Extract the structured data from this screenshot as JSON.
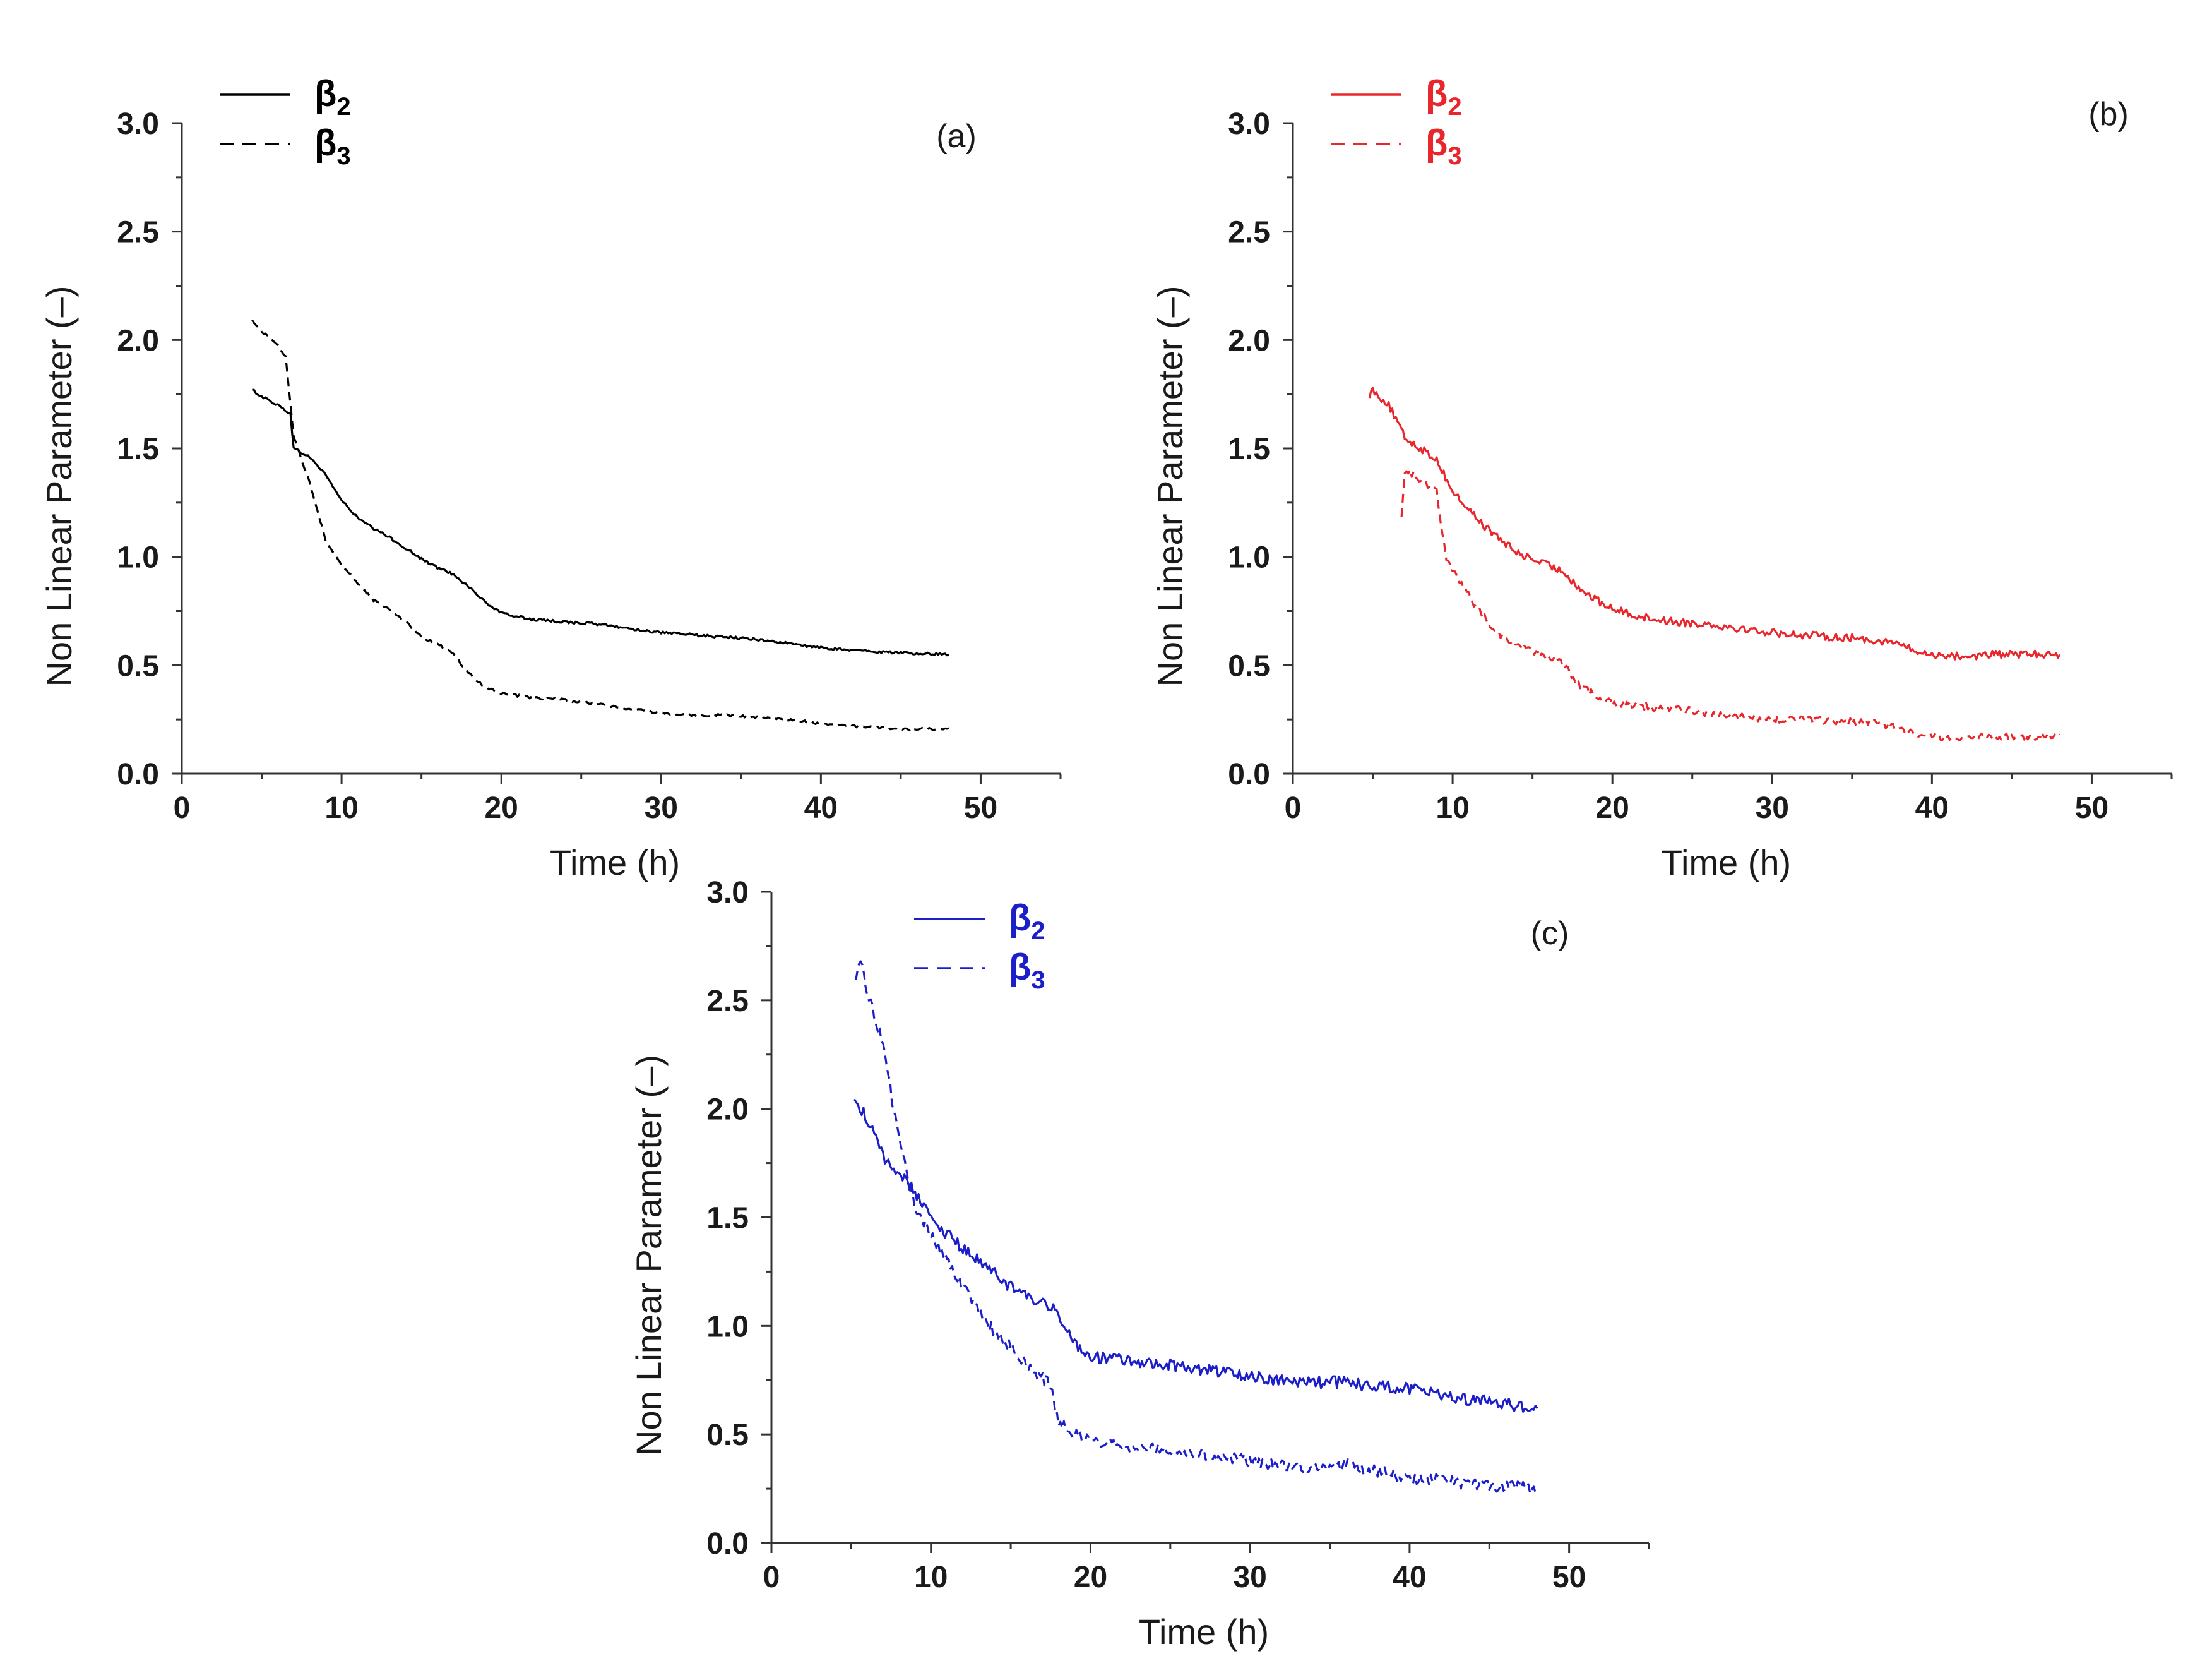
{
  "chart_data": [
    {
      "type": "line",
      "panel_label": "(a)",
      "color": "#000000",
      "xlabel": "Time (h)",
      "ylabel": "Non Linear Parameter (–)",
      "xlim": [
        0,
        55
      ],
      "ylim": [
        0.0,
        3.0
      ],
      "x_ticks": [
        0,
        10,
        20,
        30,
        40,
        50
      ],
      "x_tick_labels": [
        "0",
        "10",
        "20",
        "30",
        "40",
        "50"
      ],
      "y_ticks": [
        0.0,
        0.5,
        1.0,
        1.5,
        2.0,
        2.5,
        3.0
      ],
      "y_tick_labels": [
        "0.0",
        "0.5",
        "1.0",
        "1.5",
        "2.0",
        "2.5",
        "3.0"
      ],
      "legend_position": "top-left",
      "noise": 0.006,
      "series": [
        {
          "name": "β2",
          "symbol": "β",
          "subscript": "2",
          "style": "solid",
          "x": [
            4.4,
            5,
            6,
            6.8,
            7,
            8,
            9,
            10,
            11,
            12,
            13,
            14,
            15,
            16,
            17,
            18,
            19,
            20,
            22,
            24,
            26,
            28,
            30,
            32,
            34,
            36,
            38,
            40,
            42,
            44,
            46,
            48
          ],
          "y": [
            1.77,
            1.74,
            1.7,
            1.66,
            1.5,
            1.46,
            1.38,
            1.26,
            1.18,
            1.13,
            1.09,
            1.04,
            0.99,
            0.95,
            0.92,
            0.86,
            0.79,
            0.74,
            0.71,
            0.7,
            0.69,
            0.67,
            0.65,
            0.64,
            0.63,
            0.62,
            0.6,
            0.58,
            0.57,
            0.56,
            0.555,
            0.55
          ]
        },
        {
          "name": "β3",
          "symbol": "β",
          "subscript": "3",
          "style": "dashed",
          "x": [
            4.4,
            5,
            6,
            6.5,
            7,
            8,
            9,
            10,
            11,
            12,
            13,
            14,
            15,
            16,
            17,
            18,
            19,
            20,
            22,
            24,
            26,
            28,
            30,
            32,
            34,
            36,
            38,
            40,
            42,
            44,
            46,
            48
          ],
          "y": [
            2.09,
            2.04,
            1.98,
            1.92,
            1.56,
            1.34,
            1.08,
            0.96,
            0.88,
            0.8,
            0.76,
            0.7,
            0.63,
            0.6,
            0.55,
            0.46,
            0.4,
            0.37,
            0.35,
            0.34,
            0.32,
            0.3,
            0.28,
            0.27,
            0.27,
            0.26,
            0.25,
            0.23,
            0.22,
            0.21,
            0.205,
            0.21
          ]
        }
      ]
    },
    {
      "type": "line",
      "panel_label": "(b)",
      "color": "#e8262c",
      "xlabel": "Time (h)",
      "ylabel": "Non Linear Parameter (–)",
      "xlim": [
        0,
        55
      ],
      "ylim": [
        0.0,
        3.0
      ],
      "x_ticks": [
        0,
        10,
        20,
        30,
        40,
        50
      ],
      "x_tick_labels": [
        "0",
        "10",
        "20",
        "30",
        "40",
        "50"
      ],
      "y_ticks": [
        0.0,
        0.5,
        1.0,
        1.5,
        2.0,
        2.5,
        3.0
      ],
      "y_tick_labels": [
        "0.0",
        "0.5",
        "1.0",
        "1.5",
        "2.0",
        "2.5",
        "3.0"
      ],
      "legend_position": "top-left",
      "noise": 0.018,
      "series": [
        {
          "name": "β2",
          "symbol": "β",
          "subscript": "2",
          "style": "solid",
          "x": [
            4.8,
            5,
            6,
            7,
            8,
            9,
            10,
            11,
            12,
            13,
            14,
            15,
            16,
            17,
            18,
            19,
            20,
            22,
            24,
            26,
            28,
            30,
            32,
            34,
            36,
            38,
            39,
            40,
            42,
            44,
            46,
            48
          ],
          "y": [
            1.75,
            1.77,
            1.7,
            1.55,
            1.5,
            1.45,
            1.3,
            1.22,
            1.14,
            1.08,
            1.02,
            0.99,
            0.96,
            0.93,
            0.85,
            0.8,
            0.76,
            0.72,
            0.7,
            0.69,
            0.67,
            0.65,
            0.64,
            0.63,
            0.62,
            0.6,
            0.56,
            0.55,
            0.54,
            0.55,
            0.55,
            0.55
          ]
        },
        {
          "name": "β3",
          "symbol": "β",
          "subscript": "3",
          "style": "dashed",
          "x": [
            6.8,
            7,
            8,
            9,
            9.6,
            10,
            11,
            12,
            13,
            14,
            15,
            16,
            17,
            18,
            19,
            20,
            22,
            24,
            26,
            28,
            30,
            32,
            34,
            36,
            38,
            39,
            40,
            42,
            44,
            46,
            48
          ],
          "y": [
            1.2,
            1.4,
            1.36,
            1.3,
            1.0,
            0.94,
            0.82,
            0.72,
            0.64,
            0.6,
            0.56,
            0.54,
            0.5,
            0.4,
            0.36,
            0.33,
            0.31,
            0.3,
            0.28,
            0.26,
            0.25,
            0.25,
            0.24,
            0.24,
            0.21,
            0.18,
            0.17,
            0.17,
            0.17,
            0.17,
            0.18
          ]
        }
      ]
    },
    {
      "type": "line",
      "panel_label": "(c)",
      "color": "#1c1fc9",
      "xlabel": "Time (h)",
      "ylabel": "Non Linear Parameter (–)",
      "xlim": [
        0,
        55
      ],
      "ylim": [
        0.0,
        3.0
      ],
      "x_ticks": [
        0,
        10,
        20,
        30,
        40,
        50
      ],
      "x_tick_labels": [
        "0",
        "10",
        "20",
        "30",
        "40",
        "50"
      ],
      "y_ticks": [
        0.0,
        0.5,
        1.0,
        1.5,
        2.0,
        2.5,
        3.0
      ],
      "y_tick_labels": [
        "0.0",
        "0.5",
        "1.0",
        "1.5",
        "2.0",
        "2.5",
        "3.0"
      ],
      "legend_position": "top-left",
      "noise": 0.028,
      "series": [
        {
          "name": "β2",
          "symbol": "β",
          "subscript": "2",
          "style": "solid",
          "x": [
            5.2,
            6,
            7,
            8,
            9,
            10,
            11,
            12,
            13,
            14,
            15,
            16,
            17,
            18,
            19,
            20,
            22,
            24,
            26,
            28,
            30,
            32,
            34,
            36,
            38,
            40,
            42,
            44,
            46,
            48
          ],
          "y": [
            2.05,
            1.95,
            1.78,
            1.7,
            1.62,
            1.5,
            1.42,
            1.36,
            1.3,
            1.24,
            1.18,
            1.13,
            1.1,
            1.06,
            0.92,
            0.86,
            0.84,
            0.83,
            0.81,
            0.79,
            0.77,
            0.75,
            0.74,
            0.74,
            0.72,
            0.71,
            0.68,
            0.66,
            0.64,
            0.62
          ]
        },
        {
          "name": "β3",
          "symbol": "β",
          "subscript": "3",
          "style": "dashed",
          "x": [
            5.3,
            5.6,
            6,
            7,
            8,
            9,
            10,
            11,
            12,
            13,
            14,
            15,
            16,
            17,
            17.5,
            18,
            19,
            20,
            22,
            24,
            26,
            28,
            30,
            32,
            34,
            36,
            38,
            40,
            42,
            44,
            46,
            48
          ],
          "y": [
            2.6,
            2.68,
            2.55,
            2.3,
            1.85,
            1.55,
            1.42,
            1.3,
            1.18,
            1.07,
            0.97,
            0.9,
            0.82,
            0.76,
            0.72,
            0.55,
            0.5,
            0.48,
            0.45,
            0.44,
            0.42,
            0.4,
            0.38,
            0.36,
            0.35,
            0.36,
            0.33,
            0.3,
            0.29,
            0.27,
            0.26,
            0.25
          ]
        }
      ]
    }
  ]
}
